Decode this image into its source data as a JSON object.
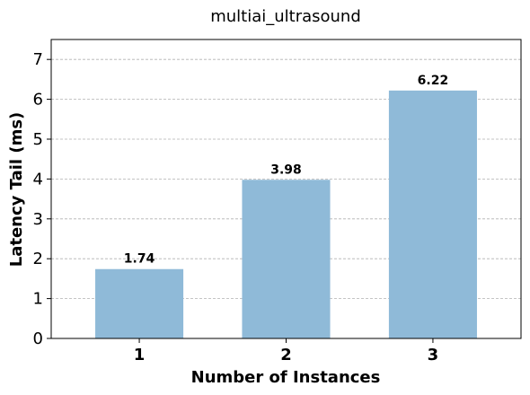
{
  "chart_data": {
    "type": "bar",
    "title": "multiai_ultrasound",
    "xlabel": "Number of Instances",
    "ylabel": "Latency Tail (ms)",
    "categories": [
      "1",
      "2",
      "3"
    ],
    "values": [
      1.74,
      3.98,
      6.22
    ],
    "value_labels": [
      "1.74",
      "3.98",
      "6.22"
    ],
    "ylim": [
      0,
      7.5
    ],
    "yticks": [
      0,
      1,
      2,
      3,
      4,
      5,
      6,
      7
    ],
    "grid": "y-dashed",
    "bar_color": "#8fbad8"
  }
}
